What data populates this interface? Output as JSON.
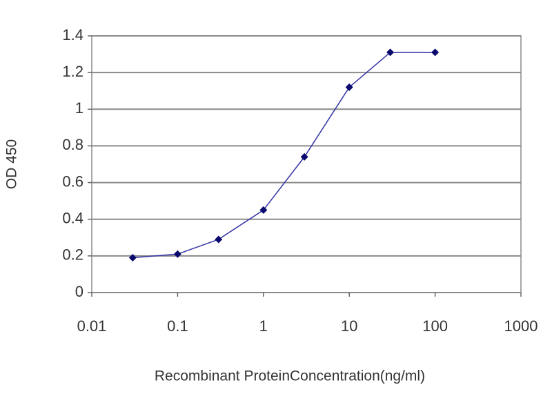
{
  "chart_data": {
    "type": "line",
    "x_label": "Recombinant ProteinConcentration(ng/ml)",
    "y_label": "OD 450",
    "x": [
      0.03,
      0.1,
      0.3,
      1,
      3,
      10,
      30,
      100
    ],
    "series": [
      {
        "color": "#3a3aa8",
        "marker_color": "#0a0a6e",
        "values": [
          0.19,
          0.21,
          0.29,
          0.45,
          0.74,
          1.12,
          1.31,
          1.31
        ]
      }
    ],
    "xscale": "log",
    "xlim": [
      0.01,
      1000
    ],
    "xticks": [
      0.01,
      0.1,
      1,
      10,
      100,
      1000
    ],
    "ylim": [
      0,
      1.4
    ],
    "yticks": [
      0,
      0.2,
      0.4,
      0.6,
      0.8,
      1,
      1.2,
      1.4
    ],
    "grid": true
  }
}
